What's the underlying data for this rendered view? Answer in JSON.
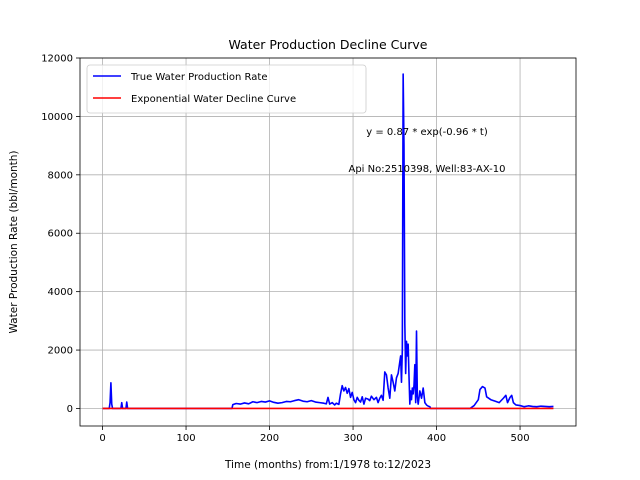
{
  "chart_data": {
    "type": "line",
    "title": "Water Production Decline Curve",
    "xlabel": "Time (months) from:1/1978 to:12/2023",
    "ylabel": "Water Production Rate (bbl/month)",
    "xlim": [
      -27,
      567
    ],
    "ylim": [
      -600,
      12000
    ],
    "xticks": [
      0,
      100,
      200,
      300,
      400,
      500
    ],
    "yticks": [
      0,
      2000,
      4000,
      6000,
      8000,
      10000,
      12000
    ],
    "grid": true,
    "legend_position": "top-left",
    "annotations": [
      "y = 0.87 * exp(-0.96 * t)",
      "Api No:2510398, Well:83-AX-10"
    ],
    "series": [
      {
        "name": "True Water Production Rate",
        "color": "#0000ff",
        "points": [
          [
            0,
            0
          ],
          [
            8,
            0
          ],
          [
            9,
            200
          ],
          [
            10,
            880
          ],
          [
            11,
            150
          ],
          [
            12,
            0
          ],
          [
            22,
            0
          ],
          [
            23,
            200
          ],
          [
            24,
            0
          ],
          [
            28,
            0
          ],
          [
            29,
            220
          ],
          [
            30,
            0
          ],
          [
            155,
            0
          ],
          [
            156,
            130
          ],
          [
            160,
            170
          ],
          [
            165,
            150
          ],
          [
            170,
            190
          ],
          [
            175,
            160
          ],
          [
            180,
            230
          ],
          [
            185,
            200
          ],
          [
            190,
            240
          ],
          [
            195,
            220
          ],
          [
            200,
            260
          ],
          [
            205,
            210
          ],
          [
            210,
            180
          ],
          [
            215,
            200
          ],
          [
            220,
            240
          ],
          [
            225,
            230
          ],
          [
            230,
            270
          ],
          [
            235,
            300
          ],
          [
            240,
            250
          ],
          [
            245,
            230
          ],
          [
            250,
            270
          ],
          [
            255,
            220
          ],
          [
            260,
            200
          ],
          [
            265,
            180
          ],
          [
            268,
            160
          ],
          [
            270,
            380
          ],
          [
            272,
            150
          ],
          [
            275,
            200
          ],
          [
            278,
            120
          ],
          [
            280,
            180
          ],
          [
            283,
            140
          ],
          [
            285,
            500
          ],
          [
            287,
            780
          ],
          [
            289,
            600
          ],
          [
            291,
            720
          ],
          [
            293,
            520
          ],
          [
            295,
            680
          ],
          [
            297,
            380
          ],
          [
            299,
            550
          ],
          [
            301,
            300
          ],
          [
            303,
            200
          ],
          [
            305,
            380
          ],
          [
            307,
            280
          ],
          [
            309,
            220
          ],
          [
            311,
            400
          ],
          [
            313,
            150
          ],
          [
            315,
            350
          ],
          [
            318,
            320
          ],
          [
            320,
            270
          ],
          [
            322,
            420
          ],
          [
            325,
            300
          ],
          [
            328,
            380
          ],
          [
            330,
            200
          ],
          [
            332,
            350
          ],
          [
            334,
            450
          ],
          [
            336,
            280
          ],
          [
            338,
            1250
          ],
          [
            340,
            1150
          ],
          [
            342,
            700
          ],
          [
            344,
            350
          ],
          [
            346,
            1150
          ],
          [
            348,
            900
          ],
          [
            350,
            600
          ],
          [
            352,
            1050
          ],
          [
            354,
            1200
          ],
          [
            356,
            1600
          ],
          [
            357,
            1800
          ],
          [
            358,
            900
          ],
          [
            359,
            2000
          ],
          [
            360,
            11450
          ],
          [
            361,
            9000
          ],
          [
            362,
            2900
          ],
          [
            363,
            1200
          ],
          [
            364,
            2300
          ],
          [
            365,
            1800
          ],
          [
            366,
            2200
          ],
          [
            367,
            1100
          ],
          [
            368,
            150
          ],
          [
            369,
            600
          ],
          [
            370,
            300
          ],
          [
            371,
            700
          ],
          [
            372,
            500
          ],
          [
            373,
            800
          ],
          [
            374,
            1500
          ],
          [
            375,
            200
          ],
          [
            376,
            2650
          ],
          [
            377,
            400
          ],
          [
            378,
            150
          ],
          [
            380,
            600
          ],
          [
            382,
            350
          ],
          [
            384,
            700
          ],
          [
            386,
            200
          ],
          [
            388,
            120
          ],
          [
            390,
            80
          ],
          [
            392,
            60
          ],
          [
            393,
            0
          ],
          [
            440,
            0
          ],
          [
            445,
            100
          ],
          [
            450,
            300
          ],
          [
            452,
            650
          ],
          [
            455,
            750
          ],
          [
            458,
            700
          ],
          [
            460,
            400
          ],
          [
            465,
            300
          ],
          [
            470,
            250
          ],
          [
            475,
            200
          ],
          [
            480,
            350
          ],
          [
            483,
            450
          ],
          [
            485,
            200
          ],
          [
            488,
            380
          ],
          [
            490,
            450
          ],
          [
            492,
            200
          ],
          [
            495,
            120
          ],
          [
            500,
            100
          ],
          [
            505,
            60
          ],
          [
            510,
            90
          ],
          [
            515,
            70
          ],
          [
            520,
            60
          ],
          [
            525,
            80
          ],
          [
            530,
            70
          ],
          [
            535,
            60
          ],
          [
            540,
            70
          ]
        ]
      },
      {
        "name": "Exponential Water Decline Curve",
        "color": "#ff0000",
        "points": [
          [
            0,
            0.87
          ],
          [
            540,
            0
          ]
        ]
      }
    ]
  }
}
